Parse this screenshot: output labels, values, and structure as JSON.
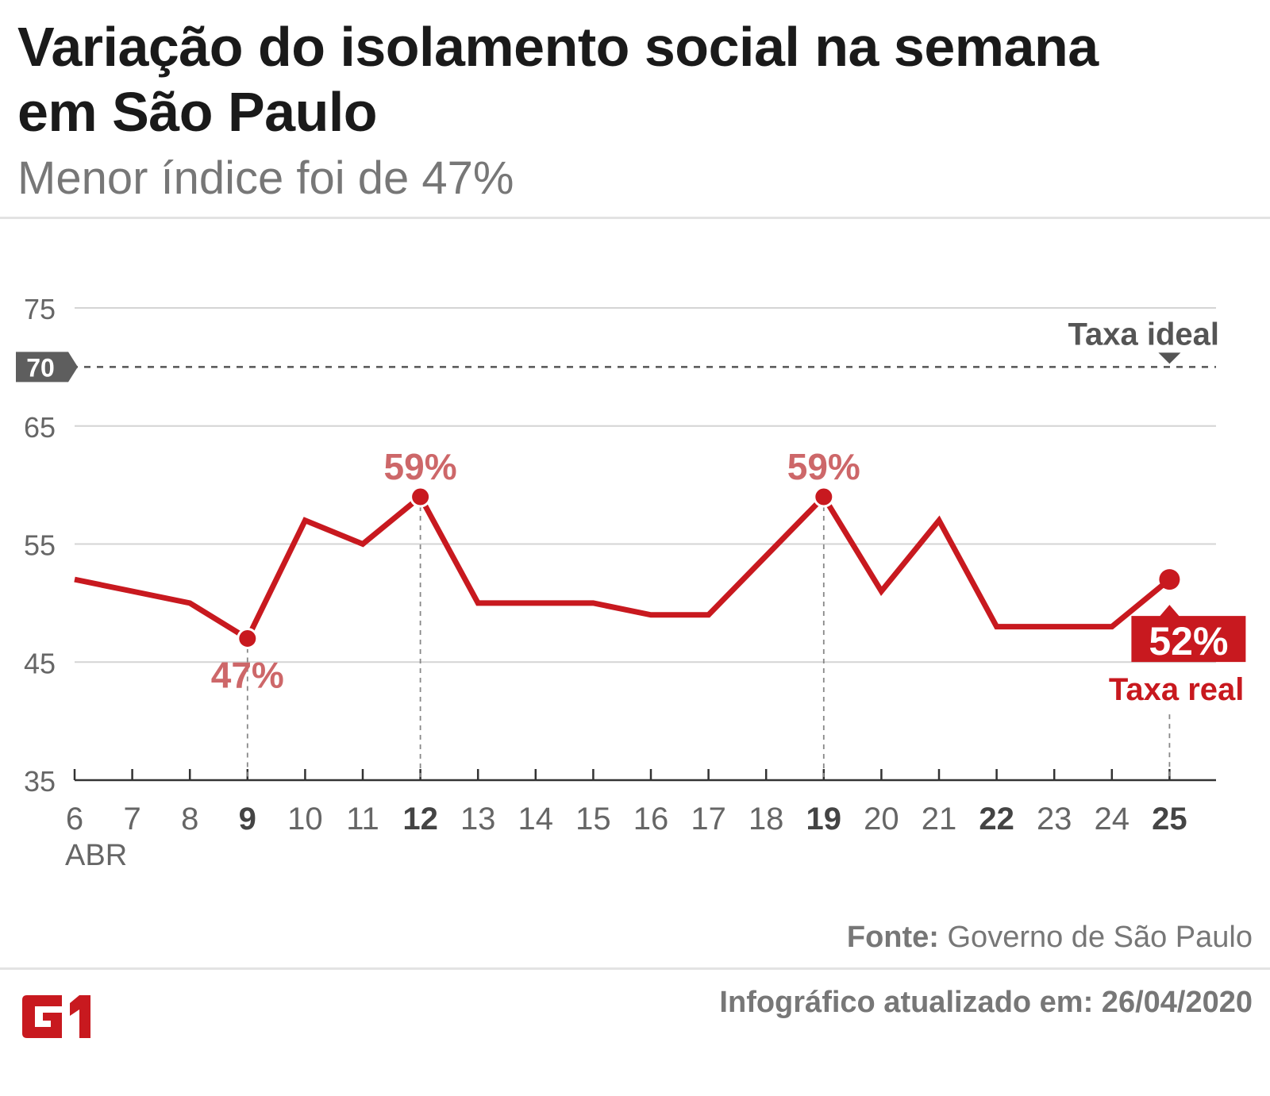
{
  "header": {
    "title": "Variação do isolamento social na semana em São Paulo",
    "subtitle": "Menor índice foi de 47%"
  },
  "footer": {
    "source_label": "Fonte:",
    "source_text": "Governo de São Paulo",
    "updated": "Infográfico atualizado em: 26/04/2020",
    "logo_text": "G1"
  },
  "colors": {
    "line": "#c8191f",
    "annotation": "#cd6769",
    "grid": "#d4d4d4",
    "axis_text": "#666666",
    "ideal_badge": "#5e5e5e"
  },
  "chart_data": {
    "type": "line",
    "title": "Variação do isolamento social na semana em São Paulo",
    "x": [
      6,
      7,
      8,
      9,
      10,
      11,
      12,
      13,
      14,
      15,
      16,
      17,
      18,
      19,
      20,
      21,
      22,
      23,
      24,
      25
    ],
    "x_tick_labels": [
      "6",
      "7",
      "8",
      "9",
      "10",
      "11",
      "12",
      "13",
      "14",
      "15",
      "16",
      "17",
      "18",
      "19",
      "20",
      "21",
      "22",
      "23",
      "24",
      "25"
    ],
    "bold_x_ticks": [
      "9",
      "12",
      "19",
      "22",
      "25"
    ],
    "x_sublabel": "ABR",
    "series": [
      {
        "name": "Taxa real",
        "values": [
          52,
          51,
          50,
          47,
          57,
          55,
          59,
          50,
          50,
          50,
          49,
          49,
          54,
          59,
          51,
          57,
          48,
          48,
          48,
          52
        ]
      }
    ],
    "ylim": [
      35,
      75
    ],
    "y_ticks": [
      35,
      45,
      55,
      65,
      75
    ],
    "y_tick_labels": [
      "35",
      "45",
      "55",
      "65",
      "75"
    ],
    "reference_line": {
      "value": 70,
      "badge": "70",
      "label": "Taxa ideal"
    },
    "annotations": [
      {
        "x": 9,
        "value": 47,
        "text": "47%",
        "position": "below"
      },
      {
        "x": 12,
        "value": 59,
        "text": "59%",
        "position": "above"
      },
      {
        "x": 19,
        "value": 59,
        "text": "59%",
        "position": "above"
      }
    ],
    "last_value": {
      "x": 25,
      "value": 52,
      "text": "52%",
      "label": "Taxa real"
    },
    "grid": true
  }
}
